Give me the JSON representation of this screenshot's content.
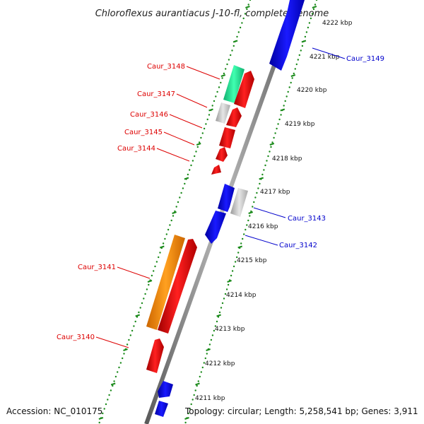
{
  "title": "Chloroflexus aurantiacus J-10-fl, complete genome",
  "footer": {
    "accession": "Accession: NC_010175",
    "topology": "Topology: circular; Length: 5,258,541 bp; Genes: 3,911"
  },
  "colors": {
    "backbone": "#888888",
    "ticks": "#1a8a1a",
    "label_red": "#dd0000",
    "label_blue": "#0000cc",
    "gene_red": "#ee0000",
    "gene_blue": "#0000ee",
    "gene_gray": "#cccccc",
    "gene_teal": "#22ee99",
    "gene_orange": "#ff8800"
  },
  "kbp_labels": [
    "4222 kbp",
    "4221 kbp",
    "4220 kbp",
    "4219 kbp",
    "4218 kbp",
    "4217 kbp",
    "4216 kbp",
    "4215 kbp",
    "4214 kbp",
    "4213 kbp",
    "4212 kbp",
    "4211 kbp"
  ],
  "gene_labels": [
    {
      "name": "Caur_3149",
      "color": "blue"
    },
    {
      "name": "Caur_3148",
      "color": "red"
    },
    {
      "name": "Caur_3147",
      "color": "red"
    },
    {
      "name": "Caur_3146",
      "color": "red"
    },
    {
      "name": "Caur_3145",
      "color": "red"
    },
    {
      "name": "Caur_3144",
      "color": "red"
    },
    {
      "name": "Caur_3143",
      "color": "blue"
    },
    {
      "name": "Caur_3142",
      "color": "blue"
    },
    {
      "name": "Caur_3141",
      "color": "red"
    },
    {
      "name": "Caur_3140",
      "color": "red"
    }
  ]
}
